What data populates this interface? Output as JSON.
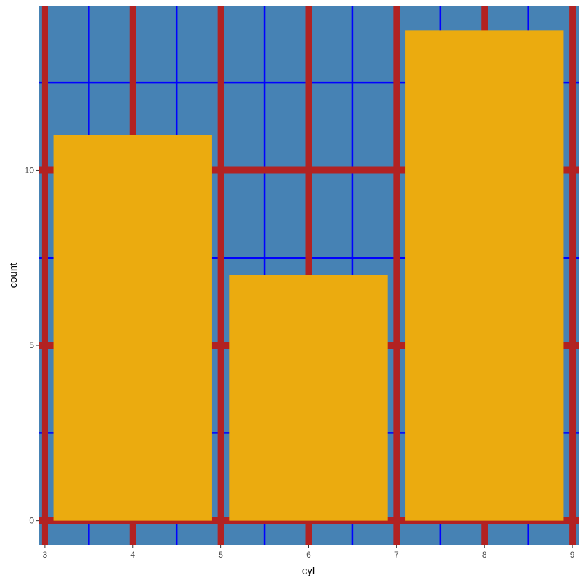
{
  "chart_data": {
    "type": "bar",
    "title": "",
    "xlabel": "cyl",
    "ylabel": "count",
    "categories": [
      4,
      6,
      8
    ],
    "values": [
      11,
      7,
      14
    ],
    "xlim": [
      2.93,
      9.07
    ],
    "ylim": [
      -0.7,
      14.7
    ],
    "x_ticks": [
      3,
      4,
      5,
      6,
      7,
      8,
      9
    ],
    "x_tick_labels": [
      "3",
      "4",
      "5",
      "6",
      "7",
      "8",
      "9"
    ],
    "y_ticks": [
      0,
      5,
      10
    ],
    "y_tick_labels": [
      "0",
      "5",
      "10"
    ],
    "x_minor_grid": [
      3.5,
      4.5,
      5.5,
      6.5,
      7.5,
      8.5
    ],
    "y_minor_grid": [
      2.5,
      7.5,
      12.5
    ],
    "bar_width": 1.8,
    "grid": true,
    "legend": "none",
    "colors": {
      "panel_background": "#4682b4",
      "major_grid": "#b22222",
      "minor_grid": "#0000ff",
      "bar_fill": "#ebab0f",
      "page_background": "#ffffff"
    }
  }
}
